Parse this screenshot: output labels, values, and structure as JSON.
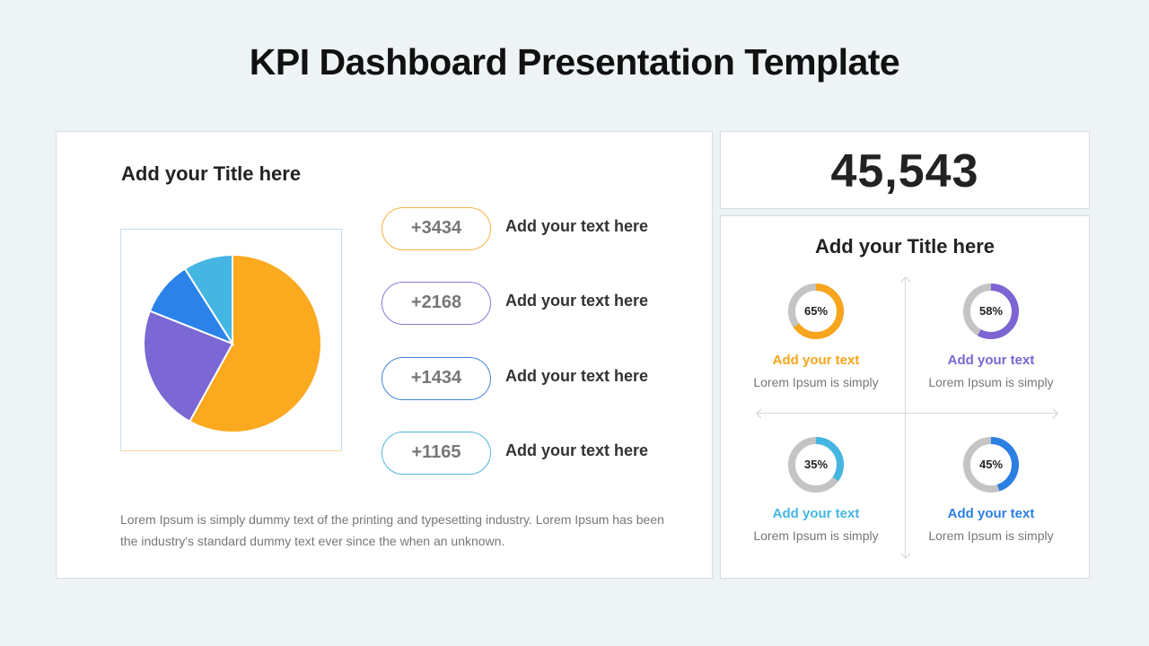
{
  "title": "KPI Dashboard Presentation Template",
  "left_panel": {
    "title": "Add your Title here",
    "description": "Lorem Ipsum is simply dummy text of the printing and typesetting industry. Lorem Ipsum has been the industry's standard dummy text ever since the when an unknown."
  },
  "chart_data": {
    "type": "pie",
    "values": [
      58,
      23,
      10,
      9
    ],
    "colors": [
      "#fba91e",
      "#7b68d4",
      "#2b83ea",
      "#45b5e2"
    ]
  },
  "stats": [
    {
      "value": "+3434",
      "label": "Add your text here",
      "color": "#f7b142"
    },
    {
      "value": "+2168",
      "label": "Add your text here",
      "color": "#8a78d6"
    },
    {
      "value": "+1434",
      "label": "Add your text here",
      "color": "#3e86d8"
    },
    {
      "value": "+1165",
      "label": "Add your text here",
      "color": "#4fb7de"
    }
  ],
  "big_number": "45,543",
  "kpi_panel": {
    "title": "Add your Title here",
    "items": [
      {
        "percent": 65,
        "percent_label": "65%",
        "label": "Add your text",
        "sub": "Lorem Ipsum is simply",
        "color": "#f7a51c"
      },
      {
        "percent": 58,
        "percent_label": "58%",
        "label": "Add your text",
        "sub": "Lorem Ipsum is simply",
        "color": "#7c64d2"
      },
      {
        "percent": 35,
        "percent_label": "35%",
        "label": "Add your text",
        "sub": "Lorem Ipsum is simply",
        "color": "#45b5e2"
      },
      {
        "percent": 45,
        "percent_label": "45%",
        "label": "Add your text",
        "sub": "Lorem Ipsum is simply",
        "color": "#2b7fe3"
      }
    ],
    "track_color": "#c4c4c4"
  }
}
